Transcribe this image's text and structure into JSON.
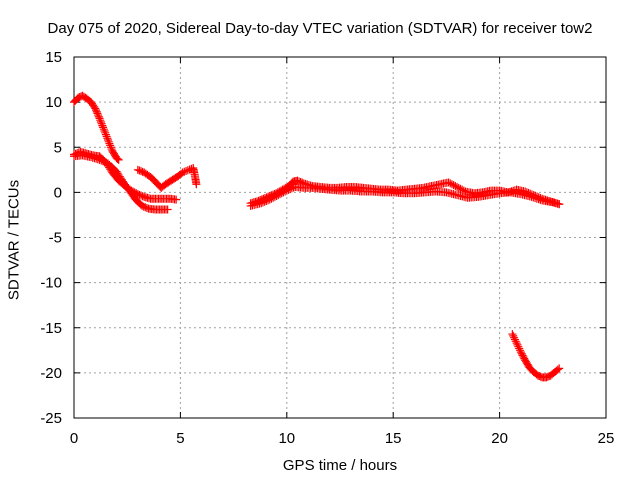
{
  "chart_data": {
    "type": "scatter",
    "title": "Day 075 of 2020, Sidereal Day-to-day VTEC variation (SDTVAR) for receiver tow2",
    "xlabel": "GPS time / hours",
    "ylabel": "SDTVAR / TECUs",
    "xlim": [
      0,
      25
    ],
    "ylim": [
      -25,
      15
    ],
    "xticks": [
      "0",
      "5",
      "10",
      "15",
      "20",
      "25"
    ],
    "yticks": [
      "15",
      "10",
      "5",
      "0",
      "-5",
      "-10",
      "-15",
      "-20",
      "-25"
    ],
    "grid": true,
    "marker": "+",
    "color": "#ff0000",
    "series": [
      {
        "name": "segment-a",
        "x": [
          0.0,
          0.2,
          0.4,
          0.6,
          0.8,
          1.0,
          1.2,
          1.4,
          1.6,
          1.8,
          2.0,
          2.1
        ],
        "y": [
          10.0,
          10.5,
          10.7,
          10.4,
          10.0,
          9.3,
          8.2,
          7.0,
          5.8,
          4.6,
          3.8,
          3.6
        ]
      },
      {
        "name": "segment-b",
        "x": [
          0.0,
          0.3,
          0.6,
          0.9,
          1.2,
          1.5,
          1.8,
          2.1,
          2.4,
          2.7,
          3.0,
          3.3,
          3.6,
          3.9,
          4.2,
          4.5,
          4.8
        ],
        "y": [
          4.2,
          4.5,
          4.3,
          4.1,
          4.0,
          3.3,
          2.2,
          1.3,
          0.7,
          0.2,
          -0.2,
          -0.5,
          -0.7,
          -0.7,
          -0.7,
          -0.7,
          -0.8
        ]
      },
      {
        "name": "segment-c",
        "x": [
          0.0,
          0.4,
          0.8,
          1.2,
          1.6,
          2.0,
          2.3,
          2.6,
          2.9,
          3.2,
          3.5,
          3.8,
          4.1,
          4.4
        ],
        "y": [
          4.0,
          4.1,
          3.9,
          3.6,
          3.2,
          2.3,
          1.2,
          0.2,
          -0.8,
          -1.5,
          -1.8,
          -1.9,
          -1.9,
          -1.9
        ]
      },
      {
        "name": "segment-d",
        "x": [
          3.0,
          3.3,
          3.6,
          3.9,
          4.1,
          4.3,
          4.5,
          4.7,
          4.9,
          5.1,
          5.6,
          5.65,
          5.7,
          5.75
        ],
        "y": [
          2.5,
          2.2,
          1.7,
          1.0,
          0.5,
          0.9,
          1.2,
          1.5,
          1.8,
          2.2,
          2.7,
          2.2,
          1.6,
          0.9
        ]
      },
      {
        "name": "segment-e",
        "x": [
          8.3,
          8.6,
          8.9,
          9.2,
          9.5,
          9.8,
          10.1,
          10.3,
          10.5,
          10.8,
          11.2,
          11.6,
          12.0,
          12.4,
          12.8,
          13.2,
          13.6,
          14.0,
          14.4,
          14.8,
          15.2,
          15.6,
          16.0,
          16.4,
          16.8,
          17.2,
          17.6,
          18.0,
          18.4,
          18.8,
          19.2,
          19.6,
          20.0,
          20.4,
          20.8,
          21.2,
          21.6,
          22.0,
          22.4,
          22.8
        ],
        "y": [
          -1.2,
          -1.0,
          -0.7,
          -0.4,
          -0.1,
          0.3,
          0.7,
          1.2,
          1.3,
          1.0,
          0.7,
          0.6,
          0.5,
          0.5,
          0.6,
          0.6,
          0.5,
          0.4,
          0.3,
          0.3,
          0.2,
          0.3,
          0.4,
          0.5,
          0.7,
          0.9,
          1.1,
          0.6,
          0.1,
          -0.1,
          0.0,
          0.2,
          0.2,
          0.0,
          0.3,
          0.1,
          -0.3,
          -0.7,
          -1.0,
          -1.3
        ]
      },
      {
        "name": "segment-f",
        "x": [
          8.3,
          8.8,
          9.2,
          9.6,
          10.0,
          10.4,
          10.8,
          11.2,
          11.6,
          12.0,
          12.5,
          13.0,
          13.5,
          14.0,
          14.5,
          15.0,
          15.5,
          16.0,
          16.5,
          17.0,
          17.5,
          18.0,
          18.5,
          19.0,
          19.5,
          20.0,
          20.5,
          21.0,
          21.5,
          22.0,
          22.5,
          22.8
        ],
        "y": [
          -1.5,
          -1.2,
          -0.8,
          -0.3,
          0.2,
          0.6,
          0.5,
          0.5,
          0.4,
          0.3,
          0.2,
          0.2,
          0.1,
          0.1,
          0.0,
          0.0,
          -0.1,
          -0.1,
          0.0,
          0.1,
          0.0,
          -0.3,
          -0.6,
          -0.5,
          -0.3,
          -0.1,
          0.0,
          -0.2,
          -0.5,
          -0.9,
          -1.1,
          -1.3
        ]
      },
      {
        "name": "segment-g",
        "x": [
          20.6,
          20.8,
          21.0,
          21.2,
          21.4,
          21.6,
          21.8,
          22.0,
          22.2,
          22.4,
          22.6,
          22.8
        ],
        "y": [
          -15.7,
          -16.7,
          -17.7,
          -18.6,
          -19.4,
          -19.9,
          -20.3,
          -20.5,
          -20.5,
          -20.3,
          -19.9,
          -19.5
        ]
      }
    ]
  }
}
